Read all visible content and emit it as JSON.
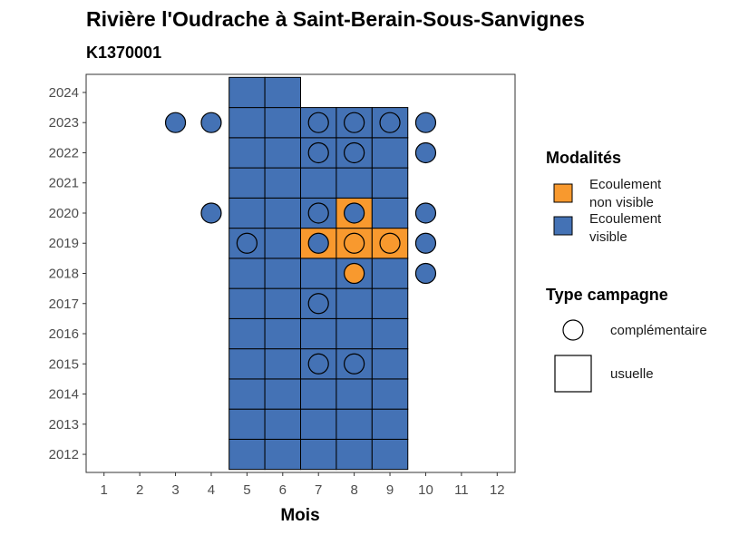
{
  "chart_data": {
    "type": "heatmap",
    "title": "Rivière l'Oudrache à Saint-Berain-Sous-Sanvignes",
    "subtitle": "K1370001",
    "xlabel": "Mois",
    "ylabel": "",
    "x_ticks": [
      1,
      2,
      3,
      4,
      5,
      6,
      7,
      8,
      9,
      10,
      11,
      12
    ],
    "y_ticks": [
      2012,
      2013,
      2014,
      2015,
      2016,
      2017,
      2018,
      2019,
      2020,
      2021,
      2022,
      2023,
      2024
    ],
    "xlim": [
      0.5,
      12.5
    ],
    "ylim": [
      2011.4,
      2024.6
    ],
    "colors": {
      "Ecoulement non visible": "#F8992E",
      "Ecoulement visible": "#4472B5"
    },
    "legend_modalites": {
      "title": "Modalités",
      "items": [
        {
          "label_line1": "Ecoulement",
          "label_line2": "non visible",
          "color": "#F8992E"
        },
        {
          "label_line1": "Ecoulement",
          "label_line2": "visible",
          "color": "#4472B5"
        }
      ]
    },
    "legend_type": {
      "title": "Type campagne",
      "items": [
        {
          "label": "complémentaire",
          "shape": "circle"
        },
        {
          "label": "usuelle",
          "shape": "square"
        }
      ]
    },
    "usuelle": [
      {
        "year": 2012,
        "month": 5,
        "mod": "Ecoulement visible"
      },
      {
        "year": 2012,
        "month": 6,
        "mod": "Ecoulement visible"
      },
      {
        "year": 2012,
        "month": 7,
        "mod": "Ecoulement visible"
      },
      {
        "year": 2012,
        "month": 8,
        "mod": "Ecoulement visible"
      },
      {
        "year": 2012,
        "month": 9,
        "mod": "Ecoulement visible"
      },
      {
        "year": 2013,
        "month": 5,
        "mod": "Ecoulement visible"
      },
      {
        "year": 2013,
        "month": 6,
        "mod": "Ecoulement visible"
      },
      {
        "year": 2013,
        "month": 7,
        "mod": "Ecoulement visible"
      },
      {
        "year": 2013,
        "month": 8,
        "mod": "Ecoulement visible"
      },
      {
        "year": 2013,
        "month": 9,
        "mod": "Ecoulement visible"
      },
      {
        "year": 2014,
        "month": 5,
        "mod": "Ecoulement visible"
      },
      {
        "year": 2014,
        "month": 6,
        "mod": "Ecoulement visible"
      },
      {
        "year": 2014,
        "month": 7,
        "mod": "Ecoulement visible"
      },
      {
        "year": 2014,
        "month": 8,
        "mod": "Ecoulement visible"
      },
      {
        "year": 2014,
        "month": 9,
        "mod": "Ecoulement visible"
      },
      {
        "year": 2015,
        "month": 5,
        "mod": "Ecoulement visible"
      },
      {
        "year": 2015,
        "month": 6,
        "mod": "Ecoulement visible"
      },
      {
        "year": 2015,
        "month": 7,
        "mod": "Ecoulement visible"
      },
      {
        "year": 2015,
        "month": 8,
        "mod": "Ecoulement visible"
      },
      {
        "year": 2015,
        "month": 9,
        "mod": "Ecoulement visible"
      },
      {
        "year": 2016,
        "month": 5,
        "mod": "Ecoulement visible"
      },
      {
        "year": 2016,
        "month": 6,
        "mod": "Ecoulement visible"
      },
      {
        "year": 2016,
        "month": 7,
        "mod": "Ecoulement visible"
      },
      {
        "year": 2016,
        "month": 8,
        "mod": "Ecoulement visible"
      },
      {
        "year": 2016,
        "month": 9,
        "mod": "Ecoulement visible"
      },
      {
        "year": 2017,
        "month": 5,
        "mod": "Ecoulement visible"
      },
      {
        "year": 2017,
        "month": 6,
        "mod": "Ecoulement visible"
      },
      {
        "year": 2017,
        "month": 7,
        "mod": "Ecoulement visible"
      },
      {
        "year": 2017,
        "month": 8,
        "mod": "Ecoulement visible"
      },
      {
        "year": 2017,
        "month": 9,
        "mod": "Ecoulement visible"
      },
      {
        "year": 2018,
        "month": 5,
        "mod": "Ecoulement visible"
      },
      {
        "year": 2018,
        "month": 6,
        "mod": "Ecoulement visible"
      },
      {
        "year": 2018,
        "month": 7,
        "mod": "Ecoulement visible"
      },
      {
        "year": 2018,
        "month": 8,
        "mod": "Ecoulement visible"
      },
      {
        "year": 2018,
        "month": 9,
        "mod": "Ecoulement visible"
      },
      {
        "year": 2019,
        "month": 5,
        "mod": "Ecoulement visible"
      },
      {
        "year": 2019,
        "month": 6,
        "mod": "Ecoulement visible"
      },
      {
        "year": 2019,
        "month": 7,
        "mod": "Ecoulement non visible"
      },
      {
        "year": 2019,
        "month": 8,
        "mod": "Ecoulement non visible"
      },
      {
        "year": 2019,
        "month": 9,
        "mod": "Ecoulement non visible"
      },
      {
        "year": 2020,
        "month": 5,
        "mod": "Ecoulement visible"
      },
      {
        "year": 2020,
        "month": 6,
        "mod": "Ecoulement visible"
      },
      {
        "year": 2020,
        "month": 7,
        "mod": "Ecoulement visible"
      },
      {
        "year": 2020,
        "month": 8,
        "mod": "Ecoulement non visible"
      },
      {
        "year": 2020,
        "month": 9,
        "mod": "Ecoulement visible"
      },
      {
        "year": 2021,
        "month": 5,
        "mod": "Ecoulement visible"
      },
      {
        "year": 2021,
        "month": 6,
        "mod": "Ecoulement visible"
      },
      {
        "year": 2021,
        "month": 7,
        "mod": "Ecoulement visible"
      },
      {
        "year": 2021,
        "month": 8,
        "mod": "Ecoulement visible"
      },
      {
        "year": 2021,
        "month": 9,
        "mod": "Ecoulement visible"
      },
      {
        "year": 2022,
        "month": 5,
        "mod": "Ecoulement visible"
      },
      {
        "year": 2022,
        "month": 6,
        "mod": "Ecoulement visible"
      },
      {
        "year": 2022,
        "month": 7,
        "mod": "Ecoulement visible"
      },
      {
        "year": 2022,
        "month": 8,
        "mod": "Ecoulement visible"
      },
      {
        "year": 2022,
        "month": 9,
        "mod": "Ecoulement visible"
      },
      {
        "year": 2023,
        "month": 5,
        "mod": "Ecoulement visible"
      },
      {
        "year": 2023,
        "month": 6,
        "mod": "Ecoulement visible"
      },
      {
        "year": 2023,
        "month": 7,
        "mod": "Ecoulement visible"
      },
      {
        "year": 2023,
        "month": 8,
        "mod": "Ecoulement visible"
      },
      {
        "year": 2023,
        "month": 9,
        "mod": "Ecoulement visible"
      },
      {
        "year": 2024,
        "month": 5,
        "mod": "Ecoulement visible"
      },
      {
        "year": 2024,
        "month": 6,
        "mod": "Ecoulement visible"
      }
    ],
    "complementaire": [
      {
        "year": 2023,
        "month": 3,
        "mod": "Ecoulement visible"
      },
      {
        "year": 2023,
        "month": 4,
        "mod": "Ecoulement visible"
      },
      {
        "year": 2023,
        "month": 7,
        "mod": "Ecoulement visible"
      },
      {
        "year": 2023,
        "month": 8,
        "mod": "Ecoulement visible"
      },
      {
        "year": 2023,
        "month": 9,
        "mod": "Ecoulement visible"
      },
      {
        "year": 2023,
        "month": 10,
        "mod": "Ecoulement visible"
      },
      {
        "year": 2022,
        "month": 7,
        "mod": "Ecoulement visible"
      },
      {
        "year": 2022,
        "month": 8,
        "mod": "Ecoulement visible"
      },
      {
        "year": 2022,
        "month": 10,
        "mod": "Ecoulement visible"
      },
      {
        "year": 2020,
        "month": 4,
        "mod": "Ecoulement visible"
      },
      {
        "year": 2020,
        "month": 7,
        "mod": "Ecoulement visible"
      },
      {
        "year": 2020,
        "month": 8,
        "mod": "Ecoulement visible"
      },
      {
        "year": 2020,
        "month": 10,
        "mod": "Ecoulement visible"
      },
      {
        "year": 2019,
        "month": 5,
        "mod": "Ecoulement visible"
      },
      {
        "year": 2019,
        "month": 7,
        "mod": "Ecoulement visible"
      },
      {
        "year": 2019,
        "month": 8,
        "mod": "Ecoulement non visible"
      },
      {
        "year": 2019,
        "month": 9,
        "mod": "Ecoulement non visible"
      },
      {
        "year": 2019,
        "month": 10,
        "mod": "Ecoulement visible"
      },
      {
        "year": 2018,
        "month": 8,
        "mod": "Ecoulement non visible"
      },
      {
        "year": 2018,
        "month": 10,
        "mod": "Ecoulement visible"
      },
      {
        "year": 2017,
        "month": 7,
        "mod": "Ecoulement visible"
      },
      {
        "year": 2015,
        "month": 7,
        "mod": "Ecoulement visible"
      },
      {
        "year": 2015,
        "month": 8,
        "mod": "Ecoulement visible"
      }
    ]
  }
}
